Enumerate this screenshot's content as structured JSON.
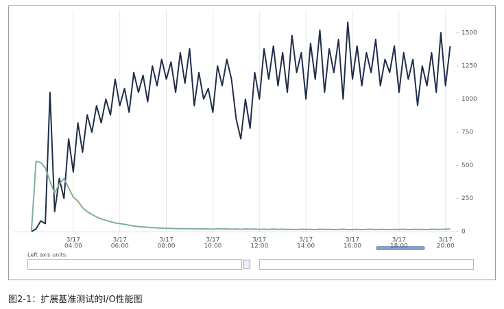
{
  "chart_data": {
    "type": "line",
    "caption": "图2-1：扩展基准测试的I/O性能图",
    "axis_units_label": "Left axis units:",
    "x": [
      2.2,
      2.4,
      2.6,
      2.8,
      3.0,
      3.2,
      3.4,
      3.6,
      3.8,
      4.0,
      4.2,
      4.4,
      4.6,
      4.8,
      5.0,
      5.2,
      5.4,
      5.6,
      5.8,
      6.0,
      6.2,
      6.4,
      6.6,
      6.8,
      7.0,
      7.2,
      7.4,
      7.6,
      7.8,
      8.0,
      8.2,
      8.4,
      8.6,
      8.8,
      9.0,
      9.2,
      9.4,
      9.6,
      9.8,
      10.0,
      10.2,
      10.4,
      10.6,
      10.8,
      11.0,
      11.2,
      11.4,
      11.6,
      11.8,
      12.0,
      12.2,
      12.4,
      12.6,
      12.8,
      13.0,
      13.2,
      13.4,
      13.6,
      13.8,
      14.0,
      14.2,
      14.4,
      14.6,
      14.8,
      15.0,
      15.2,
      15.4,
      15.6,
      15.8,
      16.0,
      16.2,
      16.4,
      16.6,
      16.8,
      17.0,
      17.2,
      17.4,
      17.6,
      17.8,
      18.0,
      18.2,
      18.4,
      18.6,
      18.8,
      19.0,
      19.2,
      19.4,
      19.6,
      19.8,
      20.0,
      20.2
    ],
    "series": [
      {
        "color": "#1f2d4a",
        "values": [
          0,
          20,
          80,
          60,
          1050,
          150,
          400,
          250,
          700,
          450,
          820,
          600,
          880,
          750,
          950,
          820,
          1000,
          880,
          1150,
          950,
          1080,
          900,
          1200,
          1050,
          1180,
          980,
          1250,
          1100,
          1300,
          1150,
          1280,
          1050,
          1350,
          1120,
          1380,
          950,
          1200,
          1000,
          1080,
          900,
          1250,
          1100,
          1300,
          1150,
          850,
          700,
          1000,
          780,
          1200,
          1000,
          1380,
          1150,
          1400,
          1100,
          1350,
          1050,
          1480,
          1200,
          1350,
          1000,
          1420,
          1150,
          1520,
          1050,
          1380,
          1200,
          1450,
          1000,
          1580,
          1150,
          1400,
          1100,
          1350,
          1200,
          1450,
          1100,
          1300,
          1200,
          1400,
          1050,
          1350,
          1150,
          1300,
          950,
          1250,
          1100,
          1350,
          1050,
          1500,
          1100,
          1400
        ]
      },
      {
        "color": "#7fae94",
        "values": [
          0,
          530,
          520,
          480,
          380,
          290,
          360,
          400,
          330,
          260,
          230,
          180,
          150,
          130,
          110,
          95,
          85,
          75,
          65,
          60,
          55,
          48,
          42,
          38,
          35,
          32,
          30,
          28,
          26,
          25,
          24,
          22,
          23,
          21,
          22,
          20,
          21,
          19,
          20,
          18,
          21,
          19,
          20,
          18,
          19,
          17,
          20,
          18,
          19,
          17,
          18,
          16,
          19,
          17,
          18,
          16,
          17,
          15,
          18,
          16,
          17,
          15,
          18,
          16,
          17,
          15,
          16,
          18,
          15,
          16,
          17,
          15,
          16,
          18,
          15,
          17,
          16,
          15,
          17,
          16,
          18,
          15,
          17,
          16,
          17,
          15,
          18,
          16,
          17,
          18,
          19
        ]
      }
    ],
    "xlim": [
      1.44,
      20.45
    ],
    "xticks": [
      {
        "value": 4,
        "label": [
          "3/17",
          "04:00"
        ]
      },
      {
        "value": 6,
        "label": [
          "3/17",
          "06:00"
        ]
      },
      {
        "value": 8,
        "label": [
          "3/17",
          "08:00"
        ]
      },
      {
        "value": 10,
        "label": [
          "3/17",
          "10:00"
        ]
      },
      {
        "value": 12,
        "label": [
          "3/17",
          "12:00"
        ]
      },
      {
        "value": 14,
        "label": [
          "3/17",
          "14:00"
        ]
      },
      {
        "value": 16,
        "label": [
          "3/17",
          "16:00"
        ]
      },
      {
        "value": 18,
        "label": [
          "3/17",
          "18:00"
        ]
      },
      {
        "value": 20,
        "label": [
          "3/17",
          "20:00"
        ]
      }
    ],
    "ylim": [
      0,
      1670
    ],
    "yticks": [
      0,
      250,
      500,
      750,
      1000,
      1250,
      1500
    ],
    "grid": true
  }
}
